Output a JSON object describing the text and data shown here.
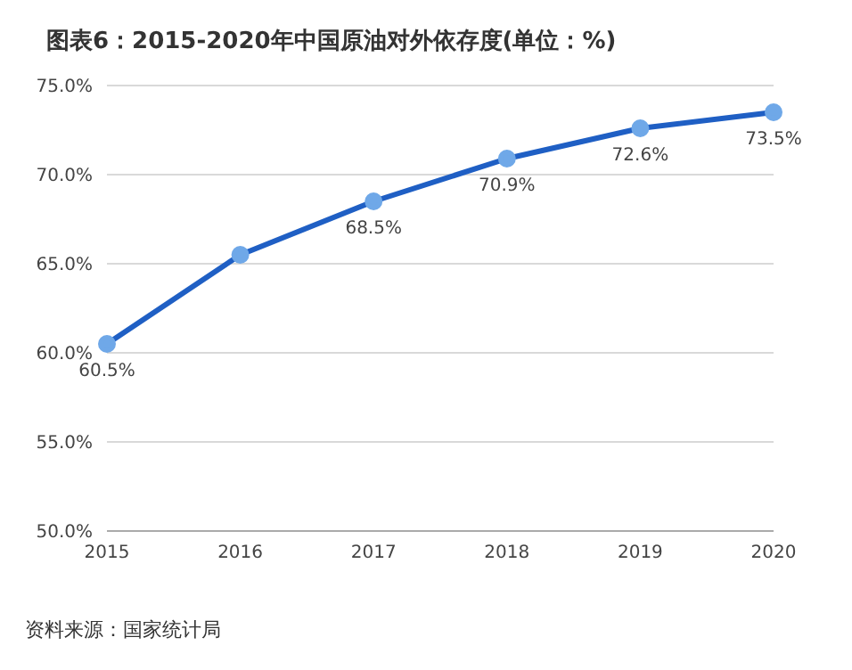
{
  "chart_data": {
    "type": "line",
    "title": "图表6：2015-2020年中国原油对外依存度(单位：%)",
    "categories": [
      "2015",
      "2016",
      "2017",
      "2018",
      "2019",
      "2020"
    ],
    "series": [
      {
        "color": "#1f5fc4",
        "values": [
          60.5,
          65.5,
          68.5,
          70.9,
          72.6,
          73.5
        ],
        "value_labels": [
          "60.5%",
          null,
          "68.5%",
          "70.9%",
          "72.6%",
          "73.5%"
        ]
      }
    ],
    "ylim": [
      50,
      75
    ],
    "yticks": [
      {
        "value": 50,
        "label": "50.0%"
      },
      {
        "value": 55,
        "label": "55.0%"
      },
      {
        "value": 60,
        "label": "60.0%"
      },
      {
        "value": 65,
        "label": "65.0%"
      },
      {
        "value": 70,
        "label": "70.0%"
      },
      {
        "value": 75,
        "label": "75.0%"
      }
    ],
    "grid": "y",
    "marker": "circle",
    "line_style": "solid",
    "annotations": [
      "资料来源：国家统计局"
    ]
  }
}
